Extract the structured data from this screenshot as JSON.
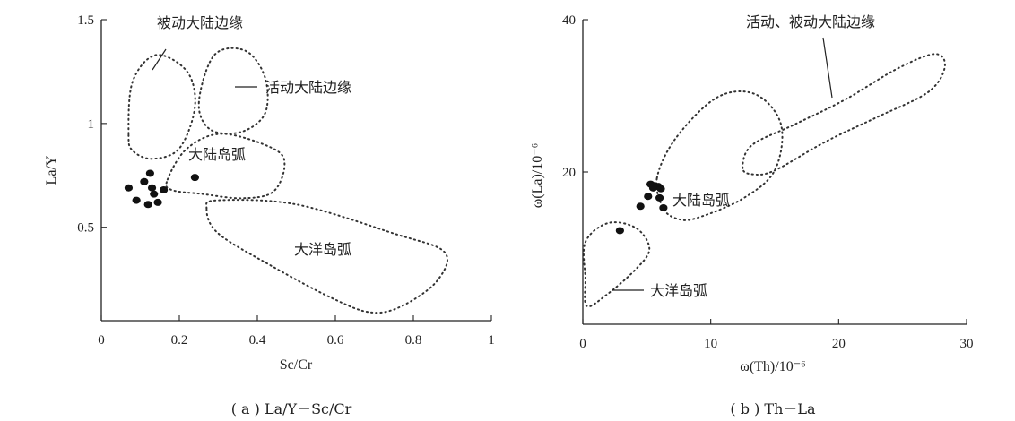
{
  "chart_data": [
    {
      "type": "scatter",
      "caption": "( a ) La/Y－Sc/Cr",
      "xlabel": "Sc/Cr",
      "ylabel": "La/Y",
      "xlim": [
        0,
        1
      ],
      "ylim": [
        0.05,
        1.5
      ],
      "xticks": [
        0,
        0.2,
        0.4,
        0.6,
        0.8,
        1
      ],
      "xtick_labels": [
        "0",
        "0.2",
        "0.4",
        "0.6",
        "0.8",
        "1"
      ],
      "yticks": [
        0.5,
        1,
        1.5
      ],
      "ytick_labels": [
        "0.5",
        "1",
        "1.5"
      ],
      "grid": false,
      "points": [
        {
          "x": 0.07,
          "y": 0.69
        },
        {
          "x": 0.11,
          "y": 0.72
        },
        {
          "x": 0.125,
          "y": 0.76
        },
        {
          "x": 0.13,
          "y": 0.69
        },
        {
          "x": 0.135,
          "y": 0.66
        },
        {
          "x": 0.16,
          "y": 0.68
        },
        {
          "x": 0.09,
          "y": 0.63
        },
        {
          "x": 0.12,
          "y": 0.61
        },
        {
          "x": 0.145,
          "y": 0.62
        },
        {
          "x": 0.24,
          "y": 0.74
        }
      ],
      "regions": [
        {
          "label": "被动大陆边缘",
          "points": [
            [
              0.07,
              0.95
            ],
            [
              0.08,
              1.2
            ],
            [
              0.14,
              1.33
            ],
            [
              0.22,
              1.25
            ],
            [
              0.24,
              1.08
            ],
            [
              0.2,
              0.88
            ],
            [
              0.13,
              0.83
            ],
            [
              0.08,
              0.87
            ]
          ]
        },
        {
          "label": "活动大陆边缘",
          "points": [
            [
              0.25,
              1.1
            ],
            [
              0.29,
              1.33
            ],
            [
              0.37,
              1.35
            ],
            [
              0.42,
              1.22
            ],
            [
              0.42,
              1.05
            ],
            [
              0.36,
              0.96
            ],
            [
              0.28,
              0.97
            ]
          ]
        },
        {
          "label": "大陆岛弧",
          "points": [
            [
              0.17,
              0.73
            ],
            [
              0.22,
              0.88
            ],
            [
              0.31,
              0.95
            ],
            [
              0.44,
              0.88
            ],
            [
              0.47,
              0.8
            ],
            [
              0.44,
              0.67
            ],
            [
              0.36,
              0.64
            ],
            [
              0.26,
              0.66
            ],
            [
              0.18,
              0.68
            ]
          ]
        },
        {
          "label": "大洋岛弧",
          "points": [
            [
              0.27,
              0.59
            ],
            [
              0.3,
              0.63
            ],
            [
              0.5,
              0.61
            ],
            [
              0.75,
              0.47
            ],
            [
              0.88,
              0.38
            ],
            [
              0.86,
              0.24
            ],
            [
              0.77,
              0.12
            ],
            [
              0.69,
              0.09
            ],
            [
              0.59,
              0.16
            ],
            [
              0.44,
              0.31
            ],
            [
              0.3,
              0.47
            ]
          ]
        }
      ],
      "annotations": [
        "被动大陆边缘",
        "活动大陆边缘",
        "大陆岛弧",
        "大洋岛弧"
      ]
    },
    {
      "type": "scatter",
      "caption": "( b ) Th－La",
      "xlabel": "ω(Th)/10⁻⁶",
      "ylabel": "ω(La)/10⁻⁶",
      "xlim": [
        0,
        30
      ],
      "ylim": [
        0,
        40
      ],
      "xticks": [
        0,
        10,
        20,
        30
      ],
      "xtick_labels": [
        "0",
        "10",
        "20",
        "30"
      ],
      "yticks": [
        20,
        40
      ],
      "ytick_labels": [
        "20",
        "40"
      ],
      "grid": false,
      "points": [
        {
          "x": 5.3,
          "y": 18.4
        },
        {
          "x": 5.6,
          "y": 18.2
        },
        {
          "x": 5.9,
          "y": 18.1
        },
        {
          "x": 5.5,
          "y": 17.9
        },
        {
          "x": 6.1,
          "y": 17.8
        },
        {
          "x": 5.1,
          "y": 16.8
        },
        {
          "x": 6.0,
          "y": 16.6
        },
        {
          "x": 4.5,
          "y": 15.5
        },
        {
          "x": 6.3,
          "y": 15.3
        },
        {
          "x": 2.9,
          "y": 12.3
        }
      ],
      "regions": [
        {
          "label": "活动、被动大陆边缘",
          "points": [
            [
              12.5,
              20.5
            ],
            [
              13.2,
              23.5
            ],
            [
              16.5,
              26.2
            ],
            [
              20.5,
              29.5
            ],
            [
              24.5,
              33.5
            ],
            [
              27.5,
              35.5
            ],
            [
              28.3,
              33.8
            ],
            [
              27,
              30.5
            ],
            [
              23,
              27.2
            ],
            [
              19,
              24
            ],
            [
              15,
              20.2
            ],
            [
              13.3,
              19.7
            ]
          ]
        },
        {
          "label": "大陆岛弧",
          "points": [
            [
              5.8,
              19.2
            ],
            [
              7.3,
              24.5
            ],
            [
              10.5,
              29.8
            ],
            [
              13.5,
              30.2
            ],
            [
              15.5,
              26.2
            ],
            [
              15,
              20.2
            ],
            [
              12.5,
              16.5
            ],
            [
              9,
              14
            ],
            [
              7.5,
              13.8
            ],
            [
              6.3,
              15.2
            ]
          ]
        },
        {
          "label": "大洋岛弧",
          "points": [
            [
              0.2,
              10.8
            ],
            [
              2,
              13.3
            ],
            [
              4.2,
              12.6
            ],
            [
              5.2,
              9.8
            ],
            [
              4,
              7
            ],
            [
              1.8,
              3.8
            ],
            [
              0.3,
              2.4
            ],
            [
              0.2,
              6
            ]
          ]
        }
      ],
      "annotations": [
        "活动、被动大陆边缘",
        "大陆岛弧",
        "大洋岛弧"
      ]
    }
  ]
}
